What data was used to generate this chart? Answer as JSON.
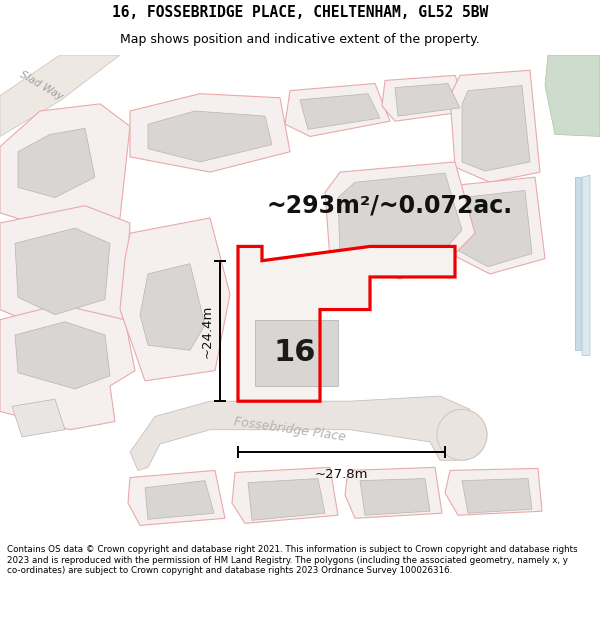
{
  "title": "16, FOSSEBRIDGE PLACE, CHELTENHAM, GL52 5BW",
  "subtitle": "Map shows position and indicative extent of the property.",
  "footer": "Contains OS data © Crown copyright and database right 2021. This information is subject to Crown copyright and database rights 2023 and is reproduced with the permission of HM Land Registry. The polygons (including the associated geometry, namely x, y co-ordinates) are subject to Crown copyright and database rights 2023 Ordnance Survey 100026316.",
  "area_text": "~293m²/~0.072ac.",
  "label_16": "16",
  "dim_vertical": "~24.4m",
  "dim_horizontal": "~27.8m",
  "road_label": "Fossebridge Place",
  "slade_label": "Slad Way",
  "bg_color": "#ffffff",
  "map_bg": "#f7f4f2",
  "road_color": "#ede8e4",
  "building_gray": "#d8d5d3",
  "building_gray_light": "#e8e5e3",
  "pink_edge": "#e8aaaa",
  "pink_fill": "#f5f0ef",
  "red_border": "#ee0000",
  "green_fill": "#cddccc",
  "blue_fill": "#c8dce8",
  "blue_line": "#9abccc"
}
